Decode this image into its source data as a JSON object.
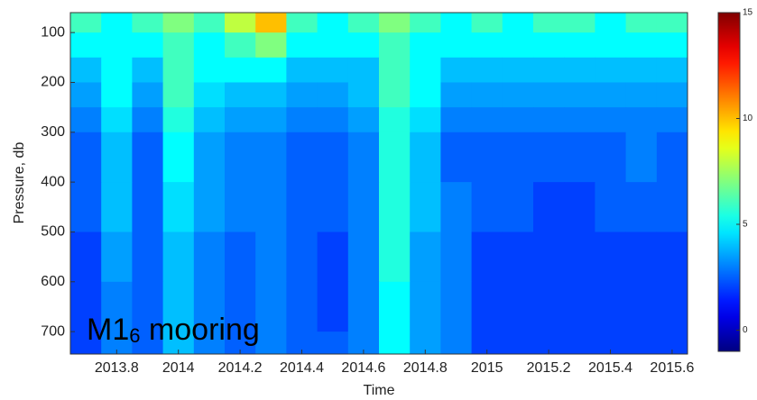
{
  "chart_data": {
    "type": "heatmap",
    "x_label": "Time",
    "y_label": "Pressure, db",
    "annotation": [
      "M1",
      "6",
      " mooring"
    ],
    "x_edges": [
      2013.65,
      2013.75,
      2013.85,
      2013.95,
      2014.05,
      2014.15,
      2014.25,
      2014.35,
      2014.45,
      2014.55,
      2014.65,
      2014.75,
      2014.85,
      2014.95,
      2015.05,
      2015.15,
      2015.25,
      2015.35,
      2015.45,
      2015.55,
      2015.65
    ],
    "y_edges": [
      60,
      100,
      150,
      200,
      250,
      300,
      400,
      500,
      600,
      700,
      745
    ],
    "z": [
      [
        6,
        5,
        6,
        7,
        6,
        8,
        10,
        6,
        5,
        6,
        7,
        6,
        5,
        6,
        5,
        6,
        6,
        5,
        6,
        6
      ],
      [
        5,
        5,
        5,
        6,
        5,
        6,
        7,
        5,
        5,
        5,
        6,
        5,
        5,
        5,
        5,
        5,
        5,
        5,
        5,
        5
      ],
      [
        4,
        5,
        4,
        6,
        5,
        5,
        5,
        4,
        4,
        4,
        6,
        5,
        4,
        4,
        4,
        4,
        4,
        4,
        4,
        4
      ],
      [
        3.5,
        5,
        3.5,
        6,
        4.5,
        4,
        4,
        3.5,
        3.5,
        4,
        6,
        5,
        3.5,
        3.5,
        3.5,
        3.5,
        3.5,
        3.5,
        3.5,
        3.5
      ],
      [
        3,
        4.5,
        3,
        5.5,
        4,
        3.5,
        3.5,
        3,
        3,
        3.5,
        5.5,
        4.5,
        3,
        3,
        3,
        3,
        3,
        3,
        3,
        3
      ],
      [
        2.5,
        4,
        2.5,
        5,
        3.5,
        3,
        3,
        2.5,
        2.5,
        3,
        5.5,
        4,
        2.5,
        2.5,
        2.5,
        2.5,
        2.5,
        2.5,
        3,
        2.5
      ],
      [
        2.5,
        4,
        2.5,
        4.5,
        3.5,
        3,
        3,
        2.5,
        2.5,
        3,
        5.5,
        4,
        3,
        2.5,
        2.5,
        2,
        2,
        2.5,
        2.5,
        2.5
      ],
      [
        2,
        3.5,
        2.5,
        4,
        3,
        2.5,
        3,
        2.5,
        2,
        3,
        5.5,
        3.5,
        3,
        2,
        2,
        2,
        2,
        2,
        2,
        2
      ],
      [
        2,
        3,
        2.5,
        4,
        3,
        2.5,
        3,
        2.5,
        2,
        3,
        5,
        3.5,
        3,
        2,
        2,
        2,
        2,
        2,
        2,
        2
      ],
      [
        2,
        3,
        2.5,
        4,
        3,
        2.5,
        3,
        2.5,
        2.5,
        3,
        5,
        3.5,
        3,
        2,
        2,
        2,
        2,
        2,
        2,
        2
      ]
    ],
    "xlim": [
      2013.65,
      2015.65
    ],
    "xticks": [
      2013.8,
      2014,
      2014.2,
      2014.4,
      2014.6,
      2014.8,
      2015,
      2015.2,
      2015.4,
      2015.6
    ],
    "ylim": [
      60,
      745
    ],
    "yticks": [
      100,
      200,
      300,
      400,
      500,
      600,
      700
    ],
    "y_reversed": true,
    "clim": [
      -1,
      15
    ],
    "cticks": [
      0,
      5,
      10,
      15
    ],
    "colormap": "jet"
  }
}
